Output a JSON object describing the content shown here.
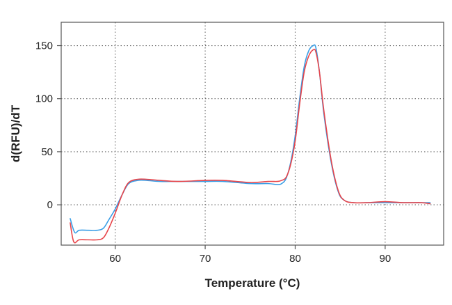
{
  "chart_data": {
    "type": "line",
    "title": "",
    "xlabel": "Temperature (°C)",
    "ylabel": "d(RFU)/dT",
    "xlim": [
      54,
      96.5
    ],
    "ylim": [
      -38,
      172
    ],
    "x_ticks": [
      60,
      70,
      80,
      90
    ],
    "y_ticks": [
      0,
      50,
      100,
      150
    ],
    "x_tick_labels": [
      "60",
      "70",
      "80",
      "90"
    ],
    "y_tick_labels": [
      "0",
      "50",
      "100",
      "150"
    ],
    "grid": true,
    "legend": "none",
    "colors": {
      "blue_series": "#3a9ee6",
      "red_series": "#e8454a",
      "grid": "#666666",
      "frame": "#555555"
    },
    "series": [
      {
        "color": "#3a9ee6",
        "x": [
          55.0,
          55.5,
          56.0,
          57.0,
          58.0,
          58.7,
          59.3,
          60.0,
          60.8,
          61.5,
          62.5,
          63.5,
          65.0,
          67.0,
          70.0,
          72.0,
          75.0,
          77.0,
          78.0,
          78.5,
          79.0,
          79.5,
          80.0,
          80.5,
          81.0,
          81.5,
          82.0,
          82.3,
          82.7,
          83.2,
          84.0,
          84.8,
          85.5,
          86.5,
          88.0,
          90.0,
          92.0,
          94.0,
          95.0
        ],
        "y": [
          -13,
          -26,
          -24,
          -24,
          -24,
          -22,
          -14,
          -4,
          10,
          20,
          23,
          23,
          22,
          22,
          22,
          22,
          20,
          20,
          19,
          20,
          25,
          40,
          65,
          100,
          130,
          145,
          150,
          148,
          125,
          85,
          40,
          12,
          4,
          2,
          2,
          2,
          2,
          2,
          2
        ]
      },
      {
        "color": "#e8454a",
        "x": [
          55.0,
          55.4,
          56.0,
          57.0,
          58.0,
          58.7,
          59.3,
          60.0,
          60.8,
          61.5,
          62.5,
          63.5,
          65.0,
          67.0,
          70.0,
          72.0,
          75.0,
          77.0,
          78.0,
          78.5,
          79.0,
          79.5,
          80.0,
          80.5,
          81.0,
          81.5,
          82.0,
          82.3,
          82.7,
          83.2,
          84.0,
          84.8,
          85.5,
          86.5,
          88.0,
          90.0,
          92.0,
          94.0,
          95.0
        ],
        "y": [
          -17,
          -35,
          -33,
          -33,
          -33,
          -31,
          -22,
          -8,
          10,
          21,
          24,
          24,
          23,
          22,
          23,
          23,
          21,
          22,
          22,
          23,
          26,
          38,
          60,
          95,
          125,
          140,
          146,
          144,
          125,
          88,
          42,
          13,
          4,
          2,
          2,
          3,
          2,
          2,
          1
        ]
      }
    ]
  }
}
